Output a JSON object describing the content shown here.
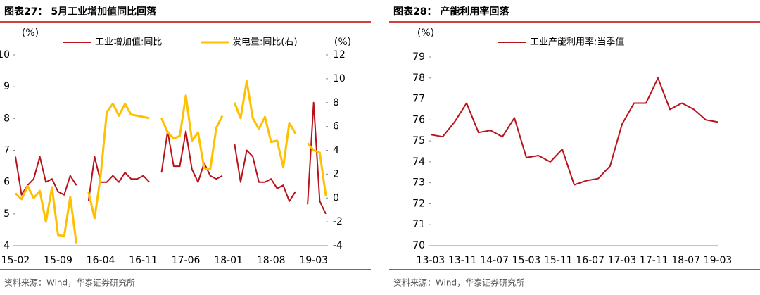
{
  "chart_data": [
    {
      "type": "line",
      "title": "图表27：  5月工业增加值同比回落",
      "source": "资料来源：Wind，华泰证券研究所",
      "y_label": "(%)",
      "y2_label": "(%)",
      "categories": [
        "15-02",
        null,
        null,
        null,
        null,
        null,
        null,
        "15-09",
        null,
        null,
        null,
        null,
        null,
        null,
        "16-04",
        null,
        null,
        null,
        null,
        null,
        null,
        "16-11",
        null,
        null,
        null,
        null,
        null,
        null,
        "17-06",
        null,
        null,
        null,
        null,
        null,
        null,
        "18-01",
        null,
        null,
        null,
        null,
        null,
        null,
        "18-08",
        null,
        null,
        null,
        null,
        null,
        null,
        "19-03",
        null,
        null
      ],
      "series": [
        {
          "name": "工业增加值:同比",
          "color": "#b8121b",
          "axis": "y",
          "values": [
            6.8,
            5.6,
            5.9,
            6.1,
            6.8,
            6.0,
            6.1,
            5.7,
            5.6,
            6.2,
            5.9,
            null,
            5.4,
            6.8,
            6.0,
            6.0,
            6.2,
            6.0,
            6.3,
            6.1,
            6.1,
            6.2,
            6.0,
            null,
            6.3,
            7.6,
            6.5,
            6.5,
            7.6,
            6.4,
            6.0,
            6.6,
            6.2,
            6.1,
            6.2,
            null,
            7.2,
            6.0,
            7.0,
            6.8,
            6.0,
            6.0,
            6.1,
            5.8,
            5.9,
            5.4,
            5.7,
            null,
            5.3,
            8.5,
            5.4,
            5.0
          ]
        },
        {
          "name": "发电量:同比(右)",
          "color": "#ffc000",
          "axis": "y2",
          "values": [
            0.4,
            -0.1,
            1.0,
            0.0,
            0.6,
            -2.0,
            0.9,
            -3.1,
            -3.2,
            0.1,
            -3.8,
            null,
            0.5,
            -1.7,
            1.9,
            7.2,
            7.9,
            6.9,
            7.9,
            7.0,
            6.9,
            6.8,
            6.7,
            null,
            6.7,
            5.5,
            5.0,
            5.2,
            8.6,
            4.8,
            5.5,
            2.5,
            2.4,
            5.9,
            6.9,
            null,
            8.0,
            6.7,
            9.8,
            6.7,
            5.8,
            6.8,
            4.7,
            4.8,
            2.6,
            6.3,
            5.4,
            null,
            4.6,
            4.0,
            3.8,
            0.2
          ]
        }
      ],
      "ylim": [
        4,
        10
      ],
      "yticks": [
        4,
        5,
        6,
        7,
        8,
        9,
        10
      ],
      "y2lim": [
        -4,
        12
      ],
      "y2ticks": [
        -4,
        -2,
        0,
        2,
        4,
        6,
        8,
        10,
        12
      ],
      "legend": "top"
    },
    {
      "type": "line",
      "title": "图表28：  产能利用率回落",
      "source": "资料来源：Wind，华泰证券研究所",
      "y_label": "(%)",
      "xticks": [
        "13-03",
        "13-11",
        "14-07",
        "15-03",
        "15-11",
        "16-07",
        "17-03",
        "17-11",
        "18-07",
        "19-03"
      ],
      "series": [
        {
          "name": "工业产能利用率:当季值",
          "color": "#b8121b",
          "axis": "y",
          "values": [
            75.3,
            75.2,
            75.9,
            76.8,
            75.4,
            75.5,
            75.2,
            76.1,
            74.2,
            74.3,
            74.0,
            74.6,
            72.9,
            73.1,
            73.2,
            73.8,
            75.8,
            76.8,
            76.8,
            78.0,
            76.5,
            76.8,
            76.5,
            76.0,
            75.9
          ]
        }
      ],
      "ylim": [
        70,
        79
      ],
      "yticks": [
        70,
        71,
        72,
        73,
        74,
        75,
        76,
        77,
        78,
        79
      ],
      "legend": "top"
    }
  ]
}
